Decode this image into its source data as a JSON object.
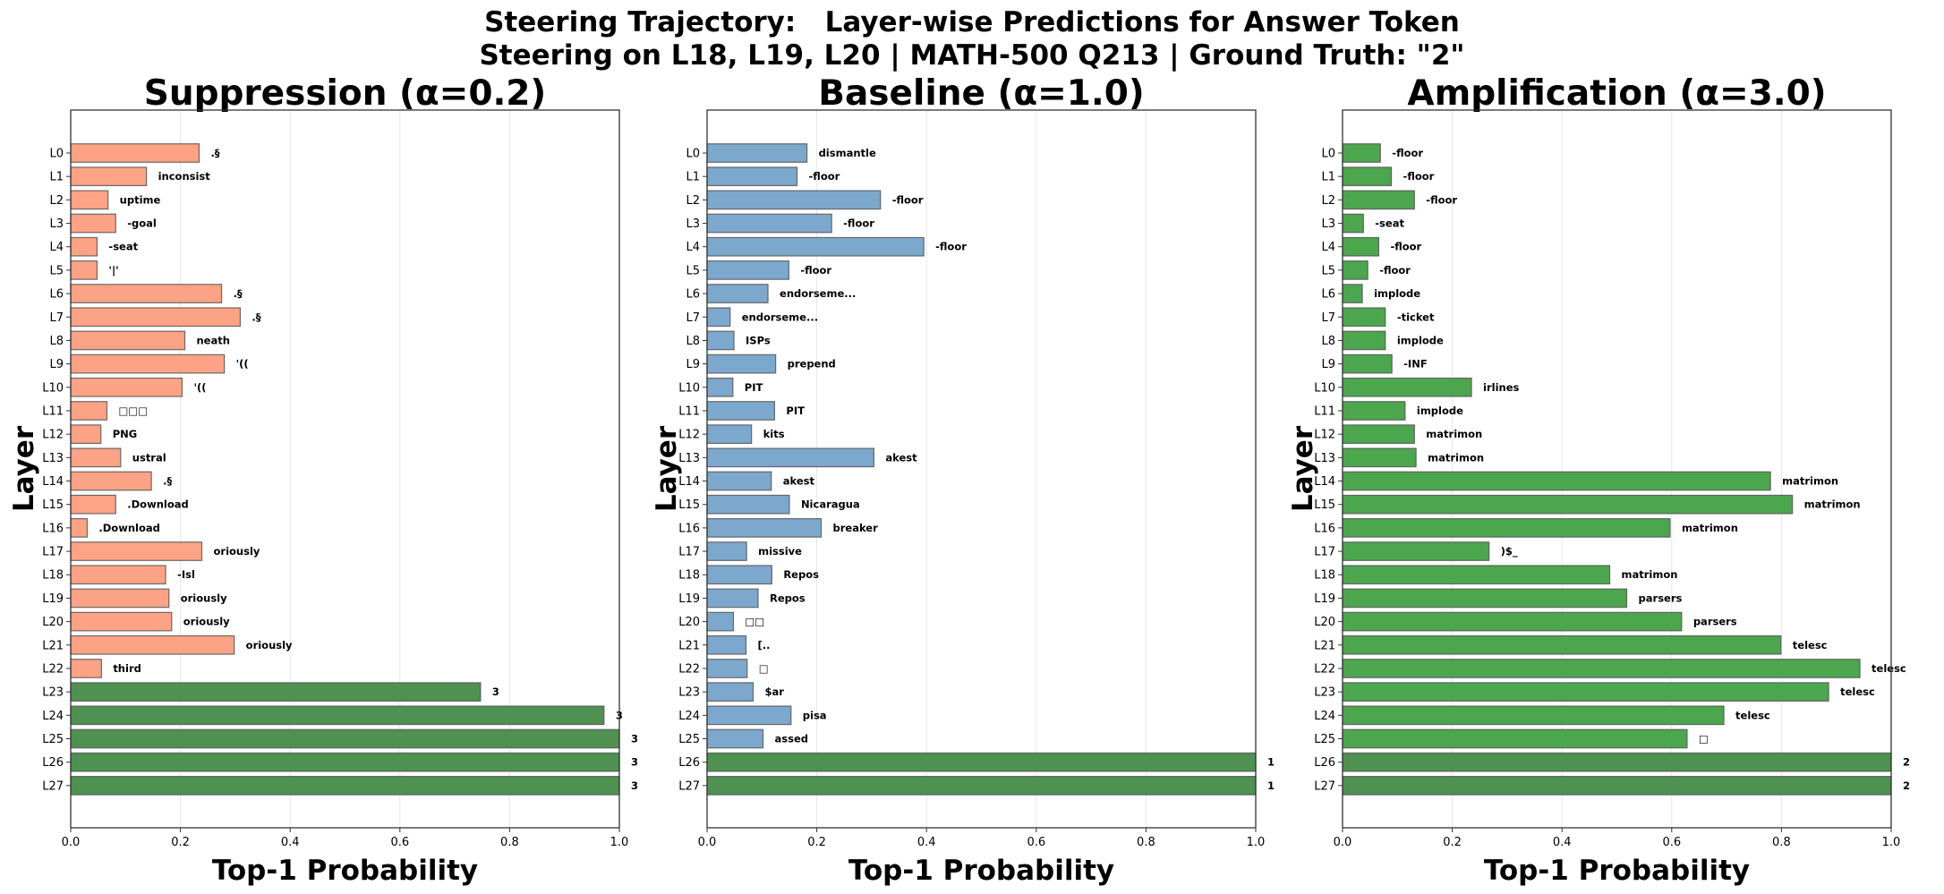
{
  "chart_data": {
    "title": "Steering Trajectory:   Layer-wise Predictions for Answer Token",
    "subtitle": "Steering on L18, L19, L20 | MATH-500 Q213 | Ground Truth: \"2\"",
    "type": "bar",
    "orientation": "horizontal",
    "colors": {
      "suppression": "#fca385",
      "baseline": "#7da8cd",
      "amplification": "#4ca64e",
      "final_answer": "#4e9150",
      "bar_edge": "#555555",
      "grid": "#e6e6e6"
    },
    "panels": [
      {
        "title": "Suppression (α=0.2)",
        "xlabel": "Top-1 Probability",
        "ylabel": "Layer",
        "xlim": [
          0,
          1.0
        ],
        "xticks": [
          "0.0",
          "0.2",
          "0.4",
          "0.6",
          "0.8",
          "1.0"
        ],
        "grid": "x",
        "color_key": "suppression",
        "categories": [
          "L0",
          "L1",
          "L2",
          "L3",
          "L4",
          "L5",
          "L6",
          "L7",
          "L8",
          "L9",
          "L10",
          "L11",
          "L12",
          "L13",
          "L14",
          "L15",
          "L16",
          "L17",
          "L18",
          "L19",
          "L20",
          "L21",
          "L22",
          "L23",
          "L24",
          "L25",
          "L26",
          "L27"
        ],
        "values": [
          0.234,
          0.138,
          0.068,
          0.082,
          0.048,
          0.048,
          0.275,
          0.309,
          0.208,
          0.28,
          0.203,
          0.066,
          0.055,
          0.091,
          0.147,
          0.082,
          0.03,
          0.239,
          0.173,
          0.179,
          0.184,
          0.298,
          0.056,
          0.747,
          0.972,
          1.0,
          1.0,
          1.0
        ],
        "tokens": [
          ".§",
          "inconsist",
          "uptime",
          "-goal",
          "-seat",
          "'|'",
          ".§",
          ".§",
          "neath",
          "'((",
          "'((",
          "□□□",
          "PNG",
          "ustral",
          ".§",
          ".Download",
          ".Download",
          "oriously",
          "-Isl",
          "oriously",
          "oriously",
          "oriously",
          "third",
          "3",
          "3",
          "3",
          "3",
          "3"
        ],
        "is_answer": [
          false,
          false,
          false,
          false,
          false,
          false,
          false,
          false,
          false,
          false,
          false,
          false,
          false,
          false,
          false,
          false,
          false,
          false,
          false,
          false,
          false,
          false,
          false,
          true,
          true,
          true,
          true,
          true
        ]
      },
      {
        "title": "Baseline (α=1.0)",
        "xlabel": "Top-1 Probability",
        "ylabel": "Layer",
        "xlim": [
          0,
          1.0
        ],
        "xticks": [
          "0.0",
          "0.2",
          "0.4",
          "0.6",
          "0.8",
          "1.0"
        ],
        "grid": "x",
        "color_key": "baseline",
        "categories": [
          "L0",
          "L1",
          "L2",
          "L3",
          "L4",
          "L5",
          "L6",
          "L7",
          "L8",
          "L9",
          "L10",
          "L11",
          "L12",
          "L13",
          "L14",
          "L15",
          "L16",
          "L17",
          "L18",
          "L19",
          "L20",
          "L21",
          "L22",
          "L23",
          "L24",
          "L25",
          "L26",
          "L27"
        ],
        "values": [
          0.182,
          0.164,
          0.316,
          0.227,
          0.395,
          0.149,
          0.111,
          0.042,
          0.049,
          0.125,
          0.047,
          0.123,
          0.081,
          0.304,
          0.117,
          0.15,
          0.208,
          0.072,
          0.118,
          0.093,
          0.048,
          0.071,
          0.073,
          0.084,
          0.153,
          0.102,
          1.0,
          1.0
        ],
        "tokens": [
          "dismantle",
          "-floor",
          "-floor",
          "-floor",
          "-floor",
          "-floor",
          "endorseme...",
          "endorseme...",
          "ISPs",
          "prepend",
          "PIT",
          "PIT",
          "kits",
          "akest",
          "akest",
          "Nicaragua",
          "breaker",
          "missive",
          "Repos",
          "Repos",
          "□□",
          "[..",
          "□",
          "$ar",
          "pisa",
          "assed",
          "1",
          "1"
        ],
        "is_answer": [
          false,
          false,
          false,
          false,
          false,
          false,
          false,
          false,
          false,
          false,
          false,
          false,
          false,
          false,
          false,
          false,
          false,
          false,
          false,
          false,
          false,
          false,
          false,
          false,
          false,
          false,
          true,
          true
        ]
      },
      {
        "title": "Amplification (α=3.0)",
        "xlabel": "Top-1 Probability",
        "ylabel": "Layer",
        "xlim": [
          0,
          1.0
        ],
        "xticks": [
          "0.0",
          "0.2",
          "0.4",
          "0.6",
          "0.8",
          "1.0"
        ],
        "grid": "x",
        "color_key": "amplification",
        "categories": [
          "L0",
          "L1",
          "L2",
          "L3",
          "L4",
          "L5",
          "L6",
          "L7",
          "L8",
          "L9",
          "L10",
          "L11",
          "L12",
          "L13",
          "L14",
          "L15",
          "L16",
          "L17",
          "L18",
          "L19",
          "L20",
          "L21",
          "L22",
          "L23",
          "L24",
          "L25",
          "L26",
          "L27"
        ],
        "values": [
          0.069,
          0.089,
          0.131,
          0.038,
          0.066,
          0.046,
          0.036,
          0.078,
          0.078,
          0.09,
          0.235,
          0.114,
          0.131,
          0.134,
          0.78,
          0.82,
          0.597,
          0.267,
          0.487,
          0.518,
          0.618,
          0.799,
          0.943,
          0.886,
          0.695,
          0.628,
          1.0,
          1.0
        ],
        "tokens": [
          "-floor",
          "-floor",
          "-floor",
          "-seat",
          "-floor",
          "-floor",
          "implode",
          "-ticket",
          "implode",
          "-INF",
          "irlines",
          "implode",
          "matrimon",
          "matrimon",
          "matrimon",
          "matrimon",
          "matrimon",
          ")$_",
          "matrimon",
          "parsers",
          "parsers",
          "telesc",
          "telesc",
          "telesc",
          "telesc",
          "□",
          "2",
          "2"
        ],
        "is_answer": [
          false,
          false,
          false,
          false,
          false,
          false,
          false,
          false,
          false,
          false,
          false,
          false,
          false,
          false,
          false,
          false,
          false,
          false,
          false,
          false,
          false,
          false,
          false,
          false,
          false,
          false,
          true,
          true
        ]
      }
    ]
  }
}
